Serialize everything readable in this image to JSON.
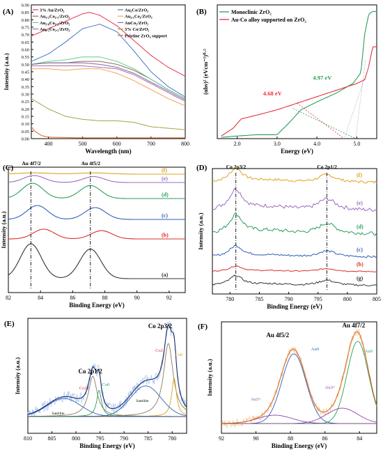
{
  "chart_data": [
    {
      "panel": "(A)",
      "type": "line",
      "xlabel": "Wavelength (nm)",
      "ylabel": "Intensity (a.u.)",
      "xlim": [
        350,
        800
      ],
      "ylim": [
        0,
        0.9
      ],
      "xticks": [
        400,
        500,
        600,
        700,
        800
      ],
      "yticks": [
        0.0,
        0.05,
        0.1,
        0.15,
        0.2,
        0.25,
        0.3,
        0.35,
        0.4,
        0.45,
        0.5,
        0.55,
        0.6,
        0.65,
        0.7,
        0.75,
        0.8,
        0.85,
        0.9
      ],
      "legend": "top (two columns)",
      "series": [
        {
          "name": "3% Au/ZrO₂",
          "color": "#e6334d",
          "x": [
            350,
            400,
            450,
            500,
            520,
            550,
            600,
            650,
            700,
            750,
            800
          ],
          "y": [
            0.69,
            0.74,
            0.79,
            0.84,
            0.85,
            0.83,
            0.76,
            0.66,
            0.56,
            0.48,
            0.42
          ]
        },
        {
          "name": "Au₁Co/ZrO₂",
          "color": "#4a74c4",
          "x": [
            350,
            400,
            450,
            500,
            550,
            600,
            650,
            700,
            750,
            800
          ],
          "y": [
            0.52,
            0.57,
            0.65,
            0.74,
            0.77,
            0.72,
            0.59,
            0.45,
            0.35,
            0.28
          ]
        },
        {
          "name": "Au₁.₅Co₁.₅/ZrO₂",
          "color": "#8f6a4e",
          "x": [
            350,
            400,
            450,
            500,
            550,
            600,
            650,
            700,
            750,
            800
          ],
          "y": [
            0.5,
            0.51,
            0.51,
            0.52,
            0.52,
            0.5,
            0.46,
            0.4,
            0.33,
            0.27
          ]
        },
        {
          "name": "Au₁.₅Co₁/ZrO₂",
          "color": "#f0a450",
          "x": [
            350,
            400,
            450,
            500,
            550,
            600,
            650,
            700,
            750,
            800
          ],
          "y": [
            0.47,
            0.47,
            0.46,
            0.47,
            0.47,
            0.44,
            0.39,
            0.33,
            0.27,
            0.22
          ]
        },
        {
          "name": "Au₁.₈Co₁.₂/ZrO₂",
          "color": "#5ccf8c",
          "x": [
            350,
            400,
            450,
            500,
            550,
            600,
            650,
            700,
            750,
            800
          ],
          "y": [
            0.5,
            0.52,
            0.53,
            0.55,
            0.55,
            0.52,
            0.47,
            0.4,
            0.33,
            0.27
          ]
        },
        {
          "name": "AuCo₂/ZrO₂",
          "color": "#7b67a8",
          "x": [
            350,
            400,
            450,
            500,
            550,
            600,
            650,
            700,
            750,
            800
          ],
          "y": [
            0.5,
            0.51,
            0.51,
            0.51,
            0.5,
            0.48,
            0.44,
            0.38,
            0.32,
            0.26
          ]
        },
        {
          "name": "Au₀.₅Co₂.₅/ZrO₂",
          "color": "#b06aa8",
          "x": [
            350,
            400,
            450,
            500,
            550,
            600,
            650,
            700,
            750,
            800
          ],
          "y": [
            0.49,
            0.49,
            0.49,
            0.49,
            0.48,
            0.47,
            0.43,
            0.37,
            0.31,
            0.25
          ]
        },
        {
          "name": "3% Co/ZrO₂",
          "color": "#a8a04a",
          "x": [
            350,
            400,
            450,
            500,
            550,
            600,
            650,
            700,
            750,
            800
          ],
          "y": [
            0.27,
            0.2,
            0.15,
            0.13,
            0.12,
            0.12,
            0.11,
            0.08,
            0.07,
            0.06
          ]
        },
        {
          "name": "Pristine ZrO₂ support",
          "color": "#d9641e",
          "x": [
            350,
            360,
            380,
            400,
            500,
            600,
            700,
            800
          ],
          "y": [
            0.08,
            0.05,
            0.02,
            0.01,
            0.005,
            0.005,
            0.005,
            0.005
          ]
        }
      ]
    },
    {
      "panel": "(B)",
      "type": "line",
      "xlabel": "Energy (eV)",
      "ylabel": "(αhν)² (eVcm⁻¹)⁰·⁵",
      "xlim": [
        1.5,
        5.5
      ],
      "xticks": [
        2.0,
        3.0,
        4.0,
        5.0
      ],
      "legend": "top-left",
      "annotations": [
        "4.97 eV",
        "4.68 eV"
      ],
      "series": [
        {
          "name": "Monoclinic ZrO₂",
          "color": "#2a9d5c",
          "x": [
            1.6,
            2.0,
            2.5,
            3.0,
            3.3,
            3.6,
            4.0,
            4.5,
            4.9,
            5.1,
            5.2,
            5.3,
            5.4,
            5.5
          ],
          "y": [
            0.01,
            0.02,
            0.03,
            0.03,
            0.12,
            0.22,
            0.28,
            0.35,
            0.42,
            0.5,
            0.8,
            0.95,
            0.97,
            0.97
          ]
        },
        {
          "name": "Au-Co alloy supported on ZrO₂",
          "color": "#e8303a",
          "x": [
            1.6,
            1.9,
            2.1,
            2.5,
            3.0,
            3.5,
            4.0,
            4.5,
            5.0,
            5.2,
            5.3,
            5.4,
            5.5
          ],
          "y": [
            0.02,
            0.08,
            0.15,
            0.18,
            0.22,
            0.27,
            0.32,
            0.37,
            0.42,
            0.45,
            0.55,
            0.7,
            0.7
          ]
        }
      ]
    },
    {
      "panel": "(C)",
      "type": "line",
      "xlabel": "Binding Energy (eV)",
      "ylabel": "Intensity (a.u.)",
      "xlim": [
        82,
        93
      ],
      "xticks": [
        82,
        84,
        86,
        88,
        90,
        92
      ],
      "annotations": [
        "Au 4f7/2",
        "Au 4f5/2"
      ],
      "series": [
        {
          "name": "(f)",
          "color": "#e0a020",
          "peaks": [
            83.6,
            87.3
          ],
          "height": 0.15
        },
        {
          "name": "(e)",
          "color": "#9b6cc0",
          "peaks": [
            83.6,
            87.3
          ],
          "height": 0.3
        },
        {
          "name": "(d)",
          "color": "#2a9d5c",
          "peaks": [
            83.5,
            87.1
          ],
          "height": 0.75
        },
        {
          "name": "(c)",
          "color": "#2f5fb8",
          "peaks": [
            83.8,
            87.4
          ],
          "height": 0.7
        },
        {
          "name": "(b)",
          "color": "#d9302a",
          "peaks": [
            84.2,
            87.8
          ],
          "height": 0.5
        },
        {
          "name": "(a)",
          "color": "#333333",
          "peaks": [
            83.4,
            87.1
          ],
          "height": 1.0
        }
      ]
    },
    {
      "panel": "(D)",
      "type": "line",
      "xlabel": "Binding Energy (eV)",
      "ylabel": "Intensity (a.u.)",
      "xlim": [
        777,
        805
      ],
      "xticks": [
        780,
        785,
        790,
        795,
        800,
        805
      ],
      "annotations": [
        "Co 2p3/2",
        "Co 2p1/2"
      ],
      "series": [
        {
          "name": "(f)",
          "color": "#e0a020"
        },
        {
          "name": "(e)",
          "color": "#9b6cc0"
        },
        {
          "name": "(d)",
          "color": "#2a9d5c"
        },
        {
          "name": "(c)",
          "color": "#2f5fb8"
        },
        {
          "name": "(b)",
          "color": "#d9302a"
        },
        {
          "name": "(g)",
          "color": "#333333"
        }
      ]
    },
    {
      "panel": "(E)",
      "type": "line",
      "xlabel": "Binding Energy (eV)",
      "ylabel": "Intensity (a.u.)",
      "xlim": [
        810,
        777
      ],
      "xticks": [
        810,
        805,
        800,
        795,
        790,
        785,
        780
      ],
      "annotations": [
        "Co 2p1/2",
        "Co 2p3/2",
        "Co2+",
        "Co0",
        "Co2+",
        "Co0",
        "Satellite",
        "Satellite"
      ]
    },
    {
      "panel": "(F)",
      "type": "line",
      "xlabel": "Binding Energy (eV)",
      "ylabel": "Intensity (a.u.)",
      "xlim": [
        92,
        83
      ],
      "xticks": [
        92,
        90,
        88,
        86,
        84
      ],
      "annotations": [
        "Au 4f5/2",
        "Au 4f7/2",
        "Au0",
        "Au0",
        "Au3+",
        "Au3+"
      ]
    }
  ]
}
